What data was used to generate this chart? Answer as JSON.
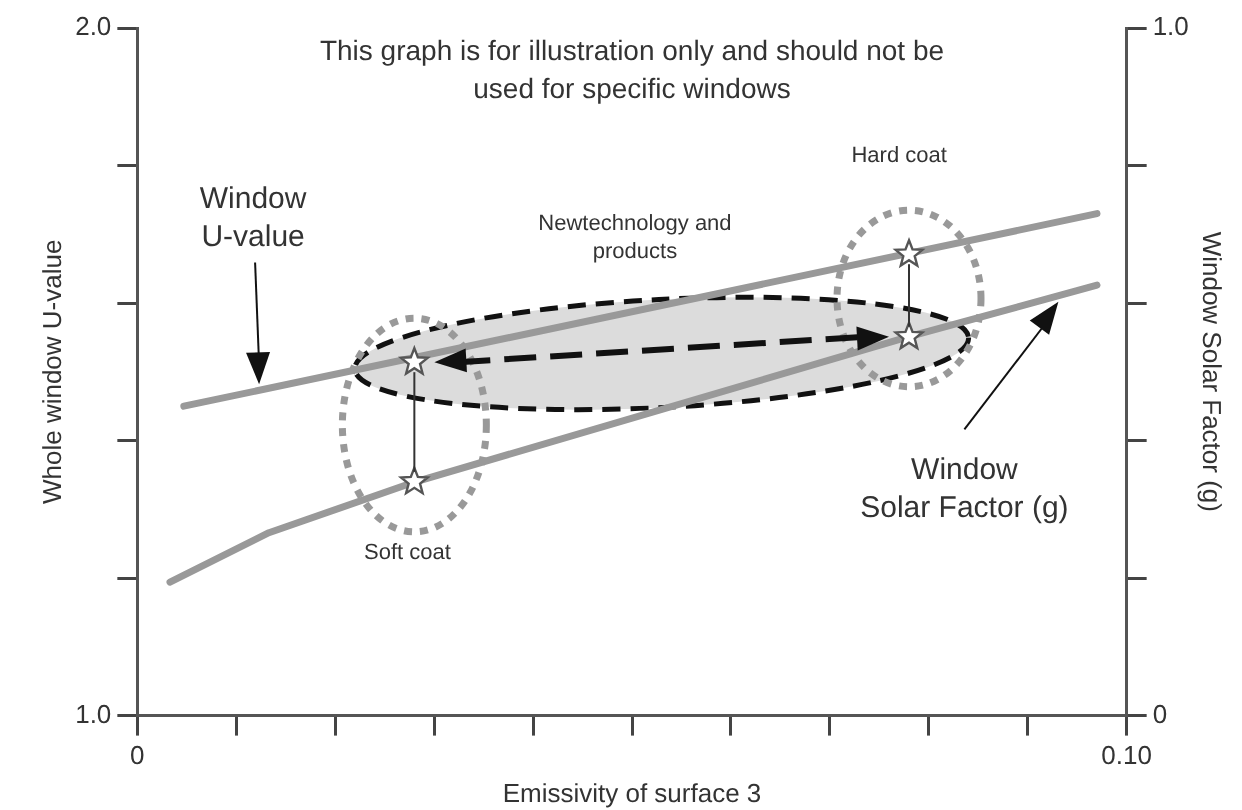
{
  "chart_data": {
    "type": "line",
    "title": "This graph is for illustration only and should not be\nused for specific windows",
    "xlabel": "Emissivity of surface 3",
    "ylabel": "Whole window U-value",
    "y2label": "Window Solar Factor (g)",
    "xlim": [
      0,
      0.1
    ],
    "xticks": [
      0,
      {
        "value": 0.01,
        "label": null
      },
      {
        "value": 0.02,
        "label": null
      },
      {
        "value": 0.03,
        "label": null
      },
      {
        "value": 0.04,
        "label": null
      },
      {
        "value": 0.05,
        "label": null
      },
      {
        "value": 0.06,
        "label": null
      },
      {
        "value": 0.07,
        "label": null
      },
      {
        "value": 0.08,
        "label": null
      },
      {
        "value": 0.09,
        "label": null
      },
      {
        "value": 0.1,
        "label": "0.10"
      }
    ],
    "ylim": [
      1,
      2
    ],
    "yticks": [
      {
        "value": 1,
        "label": "1.0"
      },
      {
        "value": 1.2,
        "label": null
      },
      {
        "value": 1.4,
        "label": null
      },
      {
        "value": 1.6,
        "label": null
      },
      {
        "value": 1.8,
        "label": null
      },
      {
        "value": 2,
        "label": "2.0"
      }
    ],
    "y2lim": [
      0,
      1
    ],
    "y2ticks": [
      0,
      {
        "value": 0.2,
        "label": null
      },
      {
        "value": 0.4,
        "label": null
      },
      {
        "value": 0.6,
        "label": null
      },
      {
        "value": 0.8,
        "label": null
      },
      {
        "value": 1,
        "label": "1.0"
      }
    ],
    "grid": false,
    "legend": false,
    "marker": "none",
    "line_style": "solid",
    "series": [
      {
        "color": "#999999",
        "x": [
          0.0047,
          0.097
        ],
        "values": [
          1.45,
          1.73
        ]
      },
      {
        "color": "#999999",
        "axis": "y2",
        "x": [
          0.0033,
          0.0133,
          0.0281,
          0.078,
          0.097
        ],
        "values": [
          0.194,
          0.266,
          0.34,
          0.551,
          0.626
        ]
      },
      {
        "type": "scatter",
        "marker": "star",
        "color": "#555555",
        "x": [
          0.028,
          0.078
        ],
        "values": [
          1.514,
          1.671
        ]
      },
      {
        "type": "scatter",
        "marker": "star",
        "color": "#555555",
        "axis": "y2",
        "x": [
          0.028,
          0.078
        ],
        "values": [
          0.34,
          0.551
        ]
      }
    ],
    "annotations": [
      "Window\nU-value",
      "Newtechnology and\nproducts",
      "Hard coat",
      "Soft coat",
      "Window\nSolar Factor (g)"
    ]
  }
}
